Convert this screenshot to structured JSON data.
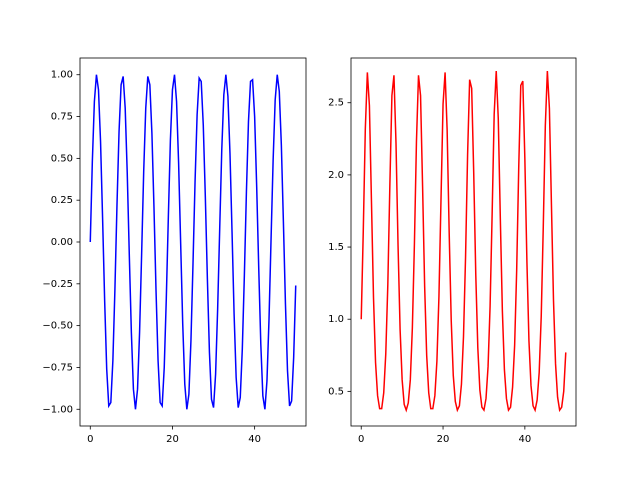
{
  "chart_data": [
    {
      "type": "line",
      "x": [
        0,
        0.5,
        1,
        1.5,
        2,
        2.5,
        3,
        3.5,
        4,
        4.5,
        5,
        5.5,
        6,
        6.5,
        7,
        7.5,
        8,
        8.5,
        9,
        9.5,
        10,
        10.5,
        11,
        11.5,
        12,
        12.5,
        13,
        13.5,
        14,
        14.5,
        15,
        15.5,
        16,
        16.5,
        17,
        17.5,
        18,
        18.5,
        19,
        19.5,
        20,
        20.5,
        21,
        21.5,
        22,
        22.5,
        23,
        23.5,
        24,
        24.5,
        25,
        25.5,
        26,
        26.5,
        27,
        27.5,
        28,
        28.5,
        29,
        29.5,
        30,
        30.5,
        31,
        31.5,
        32,
        32.5,
        33,
        33.5,
        34,
        34.5,
        35,
        35.5,
        36,
        36.5,
        37,
        37.5,
        38,
        38.5,
        39,
        39.5,
        40,
        40.5,
        41,
        41.5,
        42,
        42.5,
        43,
        43.5,
        44,
        44.5,
        45,
        45.5,
        46,
        46.5,
        47,
        47.5,
        48,
        48.5,
        49,
        49.5,
        50
      ],
      "series": [
        {
          "color": "#0000ff",
          "values": [
            0,
            0.48,
            0.84,
            1.0,
            0.91,
            0.6,
            0.14,
            -0.35,
            -0.76,
            -0.98,
            -0.96,
            -0.71,
            -0.28,
            0.22,
            0.66,
            0.94,
            0.99,
            0.8,
            0.41,
            -0.08,
            -0.54,
            -0.88,
            -1.0,
            -0.88,
            -0.54,
            -0.07,
            0.42,
            0.8,
            0.99,
            0.94,
            0.65,
            0.21,
            -0.29,
            -0.71,
            -0.96,
            -0.98,
            -0.75,
            -0.34,
            0.15,
            0.61,
            0.91,
            1.0,
            0.84,
            0.47,
            -0.01,
            -0.49,
            -0.85,
            -1.0,
            -0.91,
            -0.59,
            -0.13,
            0.36,
            0.76,
            0.98,
            0.96,
            0.7,
            0.27,
            -0.22,
            -0.66,
            -0.94,
            -0.99,
            -0.79,
            -0.4,
            0.08,
            0.55,
            0.88,
            1.0,
            0.87,
            0.53,
            0.06,
            -0.43,
            -0.81,
            -0.99,
            -0.93,
            -0.64,
            -0.2,
            0.3,
            0.72,
            0.96,
            0.97,
            0.75,
            0.33,
            -0.16,
            -0.61,
            -0.92,
            -1.0,
            -0.83,
            -0.46,
            0.02,
            0.49,
            0.85,
            1.0,
            0.9,
            0.58,
            0.12,
            -0.37,
            -0.77,
            -0.98,
            -0.95,
            -0.69,
            -0.26
          ]
        }
      ],
      "xlim": [
        -2.5,
        52.5
      ],
      "xticks": [
        0,
        20,
        40
      ],
      "ylim": [
        -1.1,
        1.1
      ],
      "yticks": [
        {
          "value": -1,
          "label": "−1.00"
        },
        {
          "value": -0.75,
          "label": "−0.75"
        },
        {
          "value": -0.5,
          "label": "−0.50"
        },
        {
          "value": -0.25,
          "label": "−0.25"
        },
        {
          "value": 0,
          "label": "0.00"
        },
        {
          "value": 0.25,
          "label": "0.25"
        },
        {
          "value": 0.5,
          "label": "0.50"
        },
        {
          "value": 0.75,
          "label": "0.75"
        },
        {
          "value": 1,
          "label": "1.00"
        }
      ]
    },
    {
      "type": "line",
      "x": [
        0,
        0.5,
        1,
        1.5,
        2,
        2.5,
        3,
        3.5,
        4,
        4.5,
        5,
        5.5,
        6,
        6.5,
        7,
        7.5,
        8,
        8.5,
        9,
        9.5,
        10,
        10.5,
        11,
        11.5,
        12,
        12.5,
        13,
        13.5,
        14,
        14.5,
        15,
        15.5,
        16,
        16.5,
        17,
        17.5,
        18,
        18.5,
        19,
        19.5,
        20,
        20.5,
        21,
        21.5,
        22,
        22.5,
        23,
        23.5,
        24,
        24.5,
        25,
        25.5,
        26,
        26.5,
        27,
        27.5,
        28,
        28.5,
        29,
        29.5,
        30,
        30.5,
        31,
        31.5,
        32,
        32.5,
        33,
        33.5,
        34,
        34.5,
        35,
        35.5,
        36,
        36.5,
        37,
        37.5,
        38,
        38.5,
        39,
        39.5,
        40,
        40.5,
        41,
        41.5,
        42,
        42.5,
        43,
        43.5,
        44,
        44.5,
        45,
        45.5,
        46,
        46.5,
        47,
        47.5,
        48,
        48.5,
        49,
        49.5,
        50
      ],
      "series": [
        {
          "color": "#ff0000",
          "values": [
            1.0,
            1.61,
            2.32,
            2.71,
            2.48,
            1.82,
            1.15,
            0.7,
            0.47,
            0.38,
            0.38,
            0.49,
            0.76,
            1.24,
            1.93,
            2.55,
            2.69,
            2.22,
            1.51,
            0.93,
            0.58,
            0.41,
            0.37,
            0.42,
            0.58,
            0.94,
            1.52,
            2.23,
            2.69,
            2.55,
            1.92,
            1.23,
            0.75,
            0.49,
            0.38,
            0.38,
            0.47,
            0.71,
            1.16,
            1.83,
            2.49,
            2.71,
            2.31,
            1.6,
            0.99,
            0.61,
            0.43,
            0.37,
            0.4,
            0.55,
            0.88,
            1.43,
            2.14,
            2.66,
            2.6,
            2.01,
            1.31,
            0.8,
            0.51,
            0.39,
            0.37,
            0.45,
            0.67,
            1.09,
            1.73,
            2.42,
            2.72,
            2.39,
            1.7,
            1.06,
            0.65,
            0.45,
            0.37,
            0.39,
            0.53,
            0.82,
            1.34,
            2.05,
            2.62,
            2.65,
            2.11,
            1.4,
            0.85,
            0.54,
            0.4,
            0.37,
            0.44,
            0.63,
            1.02,
            1.64,
            2.34,
            2.72,
            2.46,
            1.79,
            1.13,
            0.69,
            0.46,
            0.37,
            0.39,
            0.5,
            0.77
          ]
        }
      ],
      "xlim": [
        -2.5,
        52.5
      ],
      "xticks": [
        0,
        20,
        40
      ],
      "ylim": [
        0.26,
        2.81
      ],
      "yticks": [
        {
          "value": 0.5,
          "label": "0.5"
        },
        {
          "value": 1,
          "label": "1.0"
        },
        {
          "value": 1.5,
          "label": "1.5"
        },
        {
          "value": 2,
          "label": "2.0"
        },
        {
          "value": 2.5,
          "label": "2.5"
        }
      ]
    }
  ]
}
